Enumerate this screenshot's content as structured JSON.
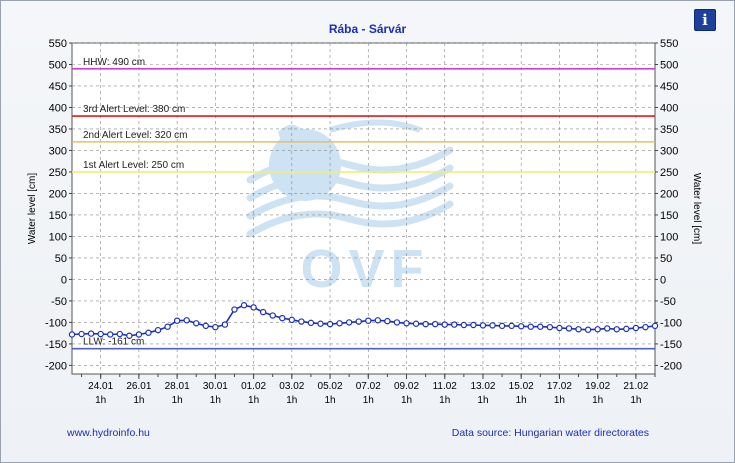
{
  "title": "Rába - Sárvár",
  "info_icon": "info-icon",
  "website": "www.hydroinfo.hu",
  "data_source": "Data source: Hungarian water directorates",
  "watermark_text": "OVF",
  "colors": {
    "series": "#1c2fbd",
    "hhw": "#d040d0",
    "alert3": "#e01c1c",
    "alert2": "#e8c060",
    "alert1": "#f0f070",
    "llw": "#5060c0",
    "watermark": "#c8dff2"
  },
  "chart_data": {
    "type": "line",
    "title": "Rába - Sárvár",
    "ylabel": "Water level [cm]",
    "ylabel_right": "Water level [cm]",
    "ylim": [
      -220,
      550
    ],
    "yticks": [
      -200,
      -150,
      -100,
      -50,
      0,
      50,
      100,
      150,
      200,
      250,
      300,
      350,
      400,
      450,
      500,
      550
    ],
    "grid": true,
    "x_range_days": [
      0,
      30.5
    ],
    "x_ticks": [
      {
        "day": 1.5,
        "date": "24.01",
        "hour": "1h"
      },
      {
        "day": 3.5,
        "date": "26.01",
        "hour": "1h"
      },
      {
        "day": 5.5,
        "date": "28.01",
        "hour": "1h"
      },
      {
        "day": 7.5,
        "date": "30.01",
        "hour": "1h"
      },
      {
        "day": 9.5,
        "date": "01.02",
        "hour": "1h"
      },
      {
        "day": 11.5,
        "date": "03.02",
        "hour": "1h"
      },
      {
        "day": 13.5,
        "date": "05.02",
        "hour": "1h"
      },
      {
        "day": 15.5,
        "date": "07.02",
        "hour": "1h"
      },
      {
        "day": 17.5,
        "date": "09.02",
        "hour": "1h"
      },
      {
        "day": 19.5,
        "date": "11.02",
        "hour": "1h"
      },
      {
        "day": 21.5,
        "date": "13.02",
        "hour": "1h"
      },
      {
        "day": 23.5,
        "date": "15.02",
        "hour": "1h"
      },
      {
        "day": 25.5,
        "date": "17.02",
        "hour": "1h"
      },
      {
        "day": 27.5,
        "date": "19.02",
        "hour": "1h"
      },
      {
        "day": 29.5,
        "date": "21.02",
        "hour": "1h"
      }
    ],
    "reference_lines": [
      {
        "label": "HHW: 490 cm",
        "value": 490,
        "color": "#d040d0"
      },
      {
        "label": "3rd Alert Level: 380 cm",
        "value": 380,
        "color": "#e01c1c"
      },
      {
        "label": "2nd Alert Level: 320 cm",
        "value": 320,
        "color": "#e8c060"
      },
      {
        "label": "1st Alert Level: 250 cm",
        "value": 250,
        "color": "#f0f070"
      },
      {
        "label": "LLW: -161 cm",
        "value": -161,
        "color": "#5060c0"
      }
    ],
    "series": [
      {
        "points": [
          [
            0.0,
            -128
          ],
          [
            0.5,
            -127
          ],
          [
            1.0,
            -126
          ],
          [
            1.5,
            -127
          ],
          [
            2.0,
            -128
          ],
          [
            2.5,
            -127
          ],
          [
            3.0,
            -131
          ],
          [
            3.5,
            -128
          ],
          [
            4.0,
            -124
          ],
          [
            4.5,
            -118
          ],
          [
            5.0,
            -110
          ],
          [
            5.5,
            -96
          ],
          [
            6.0,
            -95
          ],
          [
            6.5,
            -102
          ],
          [
            7.0,
            -108
          ],
          [
            7.5,
            -111
          ],
          [
            8.0,
            -105
          ],
          [
            8.5,
            -70
          ],
          [
            9.0,
            -60
          ],
          [
            9.5,
            -65
          ],
          [
            10.0,
            -76
          ],
          [
            10.5,
            -84
          ],
          [
            11.0,
            -90
          ],
          [
            11.5,
            -94
          ],
          [
            12.0,
            -98
          ],
          [
            12.5,
            -101
          ],
          [
            13.0,
            -103
          ],
          [
            13.5,
            -104
          ],
          [
            14.0,
            -102
          ],
          [
            14.5,
            -100
          ],
          [
            15.0,
            -98
          ],
          [
            15.5,
            -96
          ],
          [
            16.0,
            -95
          ],
          [
            16.5,
            -97
          ],
          [
            17.0,
            -100
          ],
          [
            17.5,
            -102
          ],
          [
            18.0,
            -103
          ],
          [
            18.5,
            -104
          ],
          [
            19.0,
            -104
          ],
          [
            19.5,
            -105
          ],
          [
            20.0,
            -105
          ],
          [
            20.5,
            -106
          ],
          [
            21.0,
            -106
          ],
          [
            21.5,
            -107
          ],
          [
            22.0,
            -107
          ],
          [
            22.5,
            -108
          ],
          [
            23.0,
            -108
          ],
          [
            23.5,
            -109
          ],
          [
            24.0,
            -110
          ],
          [
            24.5,
            -110
          ],
          [
            25.0,
            -111
          ],
          [
            25.5,
            -113
          ],
          [
            26.0,
            -114
          ],
          [
            26.5,
            -116
          ],
          [
            27.0,
            -117
          ],
          [
            27.5,
            -116
          ],
          [
            28.0,
            -114
          ],
          [
            28.5,
            -116
          ],
          [
            29.0,
            -115
          ],
          [
            29.5,
            -113
          ],
          [
            30.0,
            -111
          ],
          [
            30.5,
            -108
          ]
        ]
      }
    ]
  }
}
